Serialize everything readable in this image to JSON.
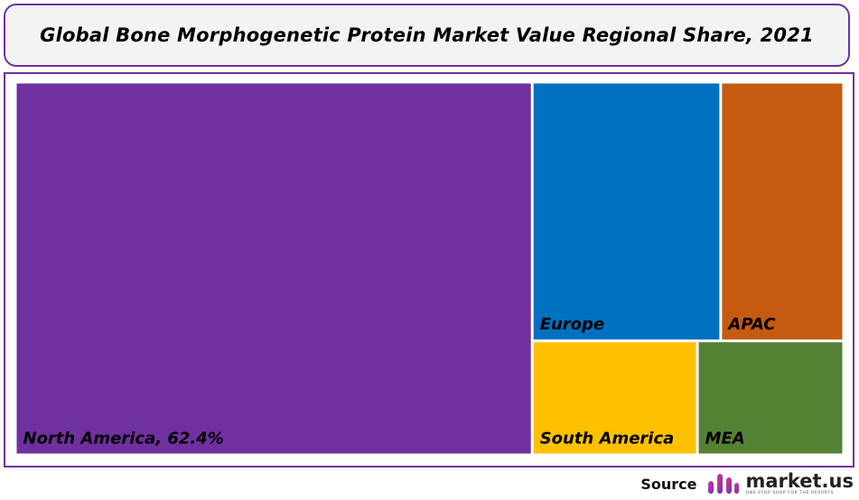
{
  "title": "Global Bone Morphogenetic Protein Market Value Regional Share, 2021",
  "source": {
    "label": "Source",
    "brand": "market.us",
    "tagline": "ONE STOP SHOP FOR THE REPORTS"
  },
  "colors": {
    "frame": "#7030a0",
    "north_america": "#7030a0",
    "europe": "#0070c0",
    "apac": "#c55a11",
    "south_america": "#ffc000",
    "mea": "#548235"
  },
  "chart_data": {
    "type": "treemap",
    "title": "Global Bone Morphogenetic Protein Market Value Regional Share, 2021",
    "series": [
      {
        "name": "North America",
        "label": "North America, 62.4%",
        "value": 62.4,
        "color": "#7030a0"
      },
      {
        "name": "Europe",
        "label": "Europe",
        "value": 15.8,
        "color": "#0070c0"
      },
      {
        "name": "APAC",
        "label": "APAC",
        "value": 10.3,
        "color": "#c55a11"
      },
      {
        "name": "South America",
        "label": "South America",
        "value": 6.1,
        "color": "#ffc000"
      },
      {
        "name": "MEA",
        "label": "MEA",
        "value": 5.4,
        "color": "#548235"
      }
    ]
  }
}
